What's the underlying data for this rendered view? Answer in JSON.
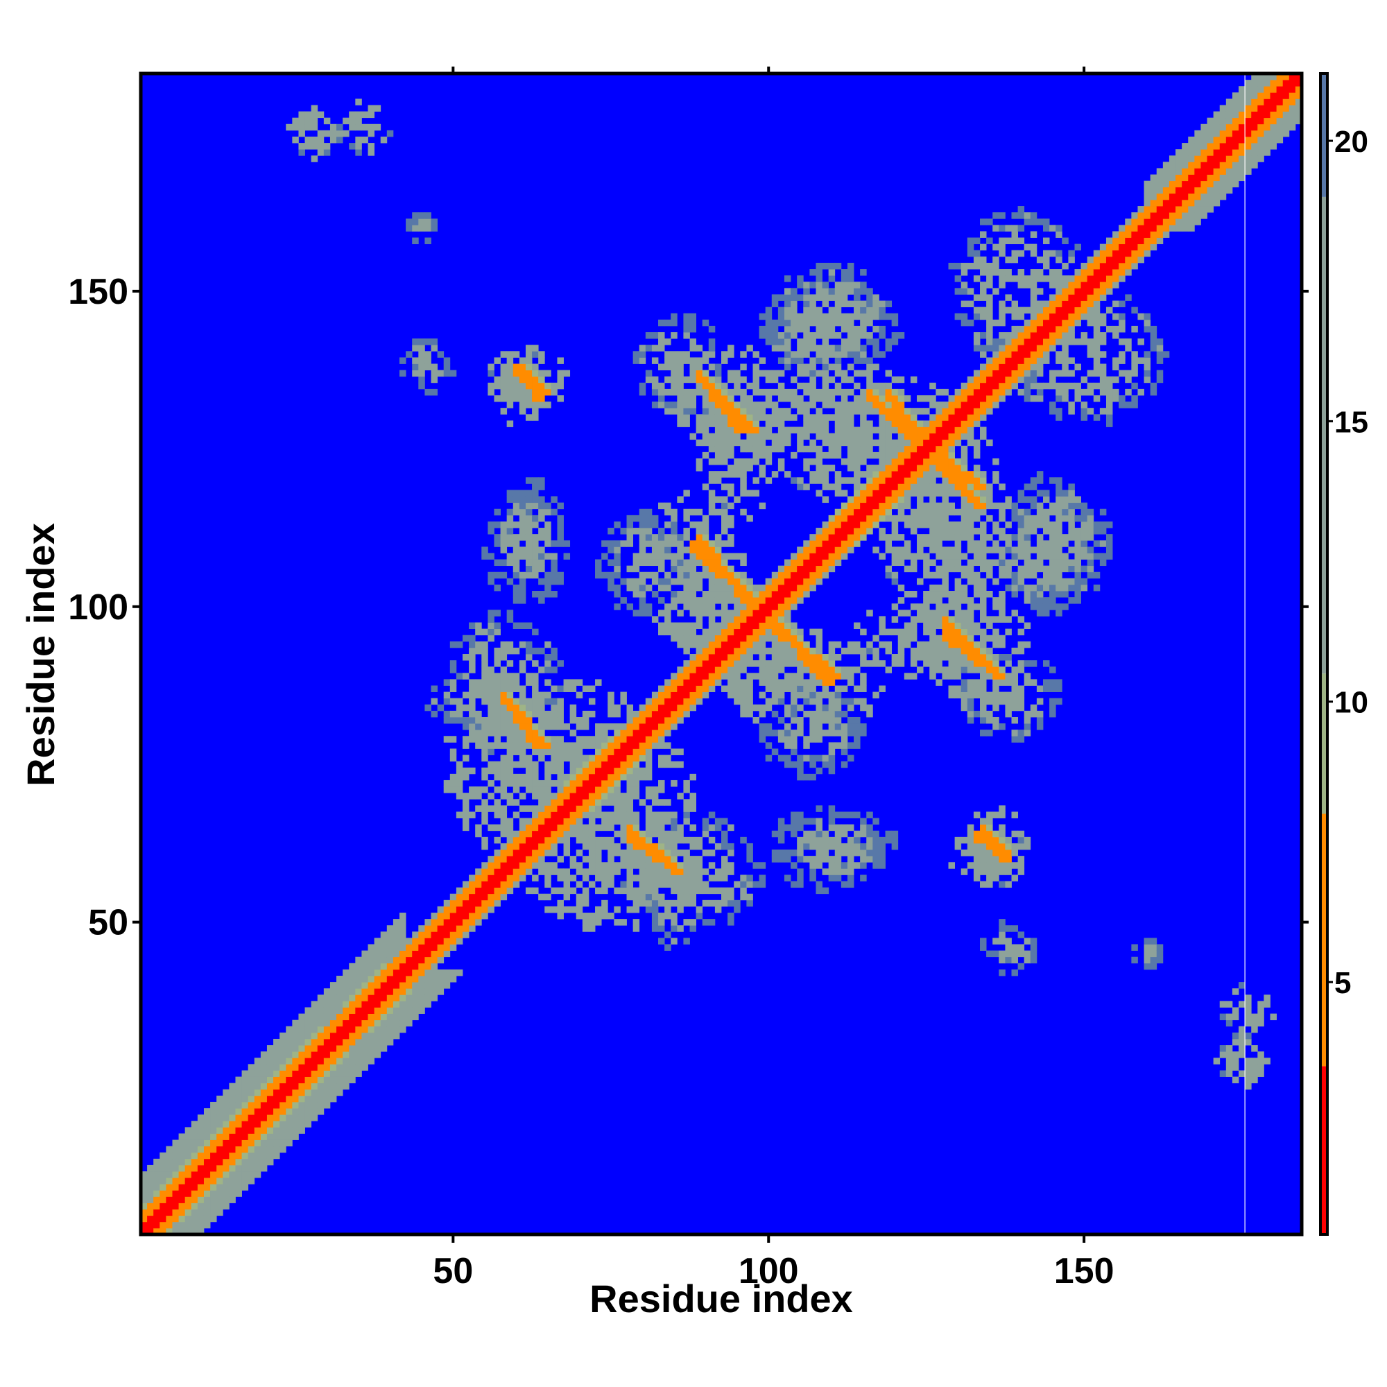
{
  "chart_data": {
    "type": "heatmap",
    "title": "",
    "xlabel": "Residue index",
    "ylabel": "Residue index",
    "n_residues": 184,
    "xlim": [
      1,
      184
    ],
    "ylim": [
      1,
      184
    ],
    "x_ticks": [
      50,
      100,
      150
    ],
    "y_ticks": [
      50,
      100,
      150
    ],
    "colorbar": {
      "ticks": [
        5,
        10,
        15,
        20
      ],
      "range": [
        0.5,
        21.2
      ],
      "colors": [
        {
          "from": 0.5,
          "to": 3.5,
          "color": "#ff0000"
        },
        {
          "from": 3.5,
          "to": 8.0,
          "color": "#ff8c00"
        },
        {
          "from": 8.0,
          "to": 10.5,
          "color": "#9fb486"
        },
        {
          "from": 10.5,
          "to": 19.0,
          "color": "#8ea29a"
        },
        {
          "from": 19.0,
          "to": 21.2,
          "color": "#5878a8"
        }
      ]
    },
    "background_color": "#0000ff",
    "background_value": 21,
    "gap_line_residue": 176,
    "regions": [
      {
        "kind": "diagonal",
        "residues": [
          1,
          184
        ],
        "core_value": 2,
        "band": 1.2
      },
      {
        "kind": "diagonal-shoulder",
        "residues": [
          1,
          40
        ],
        "value": 6,
        "width": 4
      },
      {
        "kind": "diagonal-shoulder",
        "residues": [
          1,
          42
        ],
        "value": 11,
        "width": 9
      },
      {
        "kind": "diagonal-shoulder",
        "residues": [
          40,
          184
        ],
        "value": 11,
        "width": 4
      },
      {
        "kind": "diagonal-shoulder",
        "residues": [
          160,
          184
        ],
        "value": 11,
        "width": 7
      },
      {
        "kind": "antiparallel",
        "start": [
          89,
          136
        ],
        "end": [
          95,
          128
        ],
        "value": 5
      },
      {
        "kind": "antiparallel",
        "start": [
          101,
          97
        ],
        "end": [
          109,
          88
        ],
        "value": 5
      },
      {
        "kind": "antiparallel",
        "start": [
          119,
          133
        ],
        "end": [
          124,
          126
        ],
        "value": 5
      },
      {
        "kind": "antiparallel",
        "start": [
          127,
          122
        ],
        "end": [
          133,
          116
        ],
        "value": 5
      },
      {
        "kind": "antiparallel",
        "start": [
          89,
          110
        ],
        "end": [
          97,
          100
        ],
        "value": 5
      },
      {
        "kind": "antiparallel",
        "start": [
          128,
          97
        ],
        "end": [
          136,
          89
        ],
        "value": 5
      },
      {
        "kind": "antiparallel",
        "start": [
          59,
          84
        ],
        "end": [
          63,
          78
        ],
        "value": 5
      },
      {
        "kind": "antiparallel",
        "start": [
          78,
          64
        ],
        "end": [
          85,
          58
        ],
        "value": 5
      },
      {
        "kind": "antiparallel",
        "start": [
          134,
          64
        ],
        "end": [
          137,
          60
        ],
        "value": 5
      },
      {
        "kind": "antiparallel",
        "start": [
          61,
          137
        ],
        "end": [
          63,
          133
        ],
        "value": 5
      },
      {
        "kind": "parallel",
        "start": [
          68,
          71
        ],
        "end": [
          76,
          79
        ],
        "value": 6
      },
      {
        "kind": "parallel",
        "start": [
          110,
          113
        ],
        "end": [
          117,
          120
        ],
        "value": 6
      },
      {
        "kind": "cluster",
        "center": [
          95,
          125
        ],
        "size": [
          14,
          22
        ],
        "value": 12
      },
      {
        "kind": "cluster",
        "center": [
          120,
          128
        ],
        "size": [
          22,
          16
        ],
        "value": 12
      },
      {
        "kind": "cluster",
        "center": [
          92,
          98
        ],
        "size": [
          14,
          22
        ],
        "value": 12
      },
      {
        "kind": "cluster",
        "center": [
          106,
          88
        ],
        "size": [
          24,
          16
        ],
        "value": 12
      },
      {
        "kind": "cluster",
        "center": [
          133,
          98
        ],
        "size": [
          16,
          26
        ],
        "value": 12
      },
      {
        "kind": "cluster",
        "center": [
          128,
          112
        ],
        "size": [
          22,
          22
        ],
        "value": 13
      },
      {
        "kind": "cluster",
        "center": [
          70,
          78
        ],
        "size": [
          22,
          20
        ],
        "value": 12
      },
      {
        "kind": "cluster",
        "center": [
          75,
          60
        ],
        "size": [
          28,
          22
        ],
        "value": 12
      },
      {
        "kind": "cluster",
        "center": [
          62,
          136
        ],
        "size": [
          12,
          10
        ],
        "value": 12
      },
      {
        "kind": "cluster",
        "center": [
          135,
          60
        ],
        "size": [
          12,
          10
        ],
        "value": 12
      },
      {
        "kind": "cluster",
        "center": [
          110,
          145
        ],
        "size": [
          20,
          18
        ],
        "value": 14
      },
      {
        "kind": "cluster",
        "center": [
          140,
          150
        ],
        "size": [
          22,
          26
        ],
        "value": 14
      },
      {
        "kind": "cluster",
        "center": [
          86,
          138
        ],
        "size": [
          14,
          16
        ],
        "value": 14
      },
      {
        "kind": "cluster",
        "center": [
          58,
          88
        ],
        "size": [
          18,
          22
        ],
        "value": 14
      },
      {
        "kind": "cluster",
        "center": [
          60,
          110
        ],
        "size": [
          10,
          18
        ],
        "value": 15
      },
      {
        "kind": "cluster",
        "center": [
          110,
          63
        ],
        "size": [
          20,
          10
        ],
        "value": 15
      },
      {
        "kind": "cluster",
        "center": [
          107,
          80
        ],
        "size": [
          16,
          14
        ],
        "value": 15
      },
      {
        "kind": "cluster",
        "center": [
          145,
          110
        ],
        "size": [
          14,
          22
        ],
        "value": 15
      },
      {
        "kind": "cluster",
        "center": [
          36,
          176
        ],
        "size": [
          8,
          8
        ],
        "value": 13
      },
      {
        "kind": "cluster",
        "center": [
          175,
          28
        ],
        "size": [
          8,
          8
        ],
        "value": 13
      },
      {
        "kind": "cluster",
        "center": [
          138,
          46
        ],
        "size": [
          8,
          8
        ],
        "value": 15
      },
      {
        "kind": "cluster",
        "center": [
          45,
          160
        ],
        "size": [
          5,
          5
        ],
        "value": 15
      },
      {
        "kind": "cluster",
        "center": [
          160,
          45
        ],
        "size": [
          5,
          5
        ],
        "value": 15
      },
      {
        "kind": "cluster",
        "center": [
          45,
          140
        ],
        "size": [
          6,
          6
        ],
        "value": 15
      },
      {
        "kind": "cluster",
        "center": [
          50,
          85
        ],
        "size": [
          8,
          8
        ],
        "value": 15
      }
    ]
  }
}
